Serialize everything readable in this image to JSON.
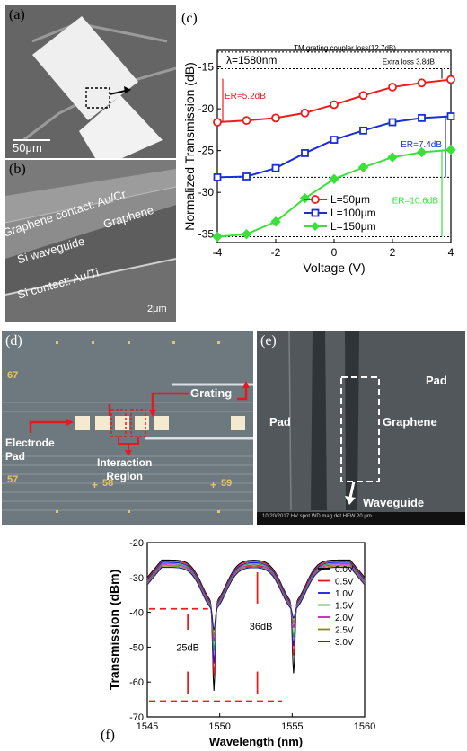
{
  "panels": {
    "a": {
      "label": "(a)",
      "scale": "50μm"
    },
    "b": {
      "label": "(b)",
      "graphene_contact": "Graphene contact: Au/Cr",
      "graphene": "Graphene",
      "si_waveguide": "Si waveguide",
      "si_contact": "Si contact: Au/Ti",
      "scale": "2μm"
    },
    "c": {
      "label": "(c)",
      "tm_loss": "TM grating coupler loss(12.7dB)",
      "extra_loss": "Extra loss 3.8dB",
      "lambda": "λ=1580nm",
      "er1": "ER=5.2dB",
      "er2": "ER=7.4dB",
      "er3": "ER=10.6dB"
    },
    "d": {
      "label": "(d)",
      "grating": "Grating",
      "electrode1": "Electrode",
      "electrode2": "Pad",
      "interaction1": "Interaction",
      "interaction2": "Region",
      "num1": "67",
      "num2": "57",
      "num3": "58",
      "num4": "59"
    },
    "e": {
      "label": "(e)",
      "pad_left": "Pad",
      "pad_right": "Pad",
      "graphene": "Graphene",
      "waveguide": "Waveguide",
      "info": "10/20/2017  HV  spot  WD  mag  det  HFW      20 μm"
    },
    "f": {
      "label": "(f)",
      "db25": "25dB",
      "db36": "36dB"
    }
  },
  "colors": {
    "red": "#ee1c1c",
    "blue": "#1a2fd6",
    "green": "#39e13a"
  },
  "chart_data": [
    {
      "type": "line",
      "xlabel": "Voltage (V)",
      "ylabel": "Normalized Transmission (dB)",
      "xlim": [
        -4,
        4
      ],
      "ylim": [
        -36,
        -13
      ],
      "xticks": [
        "-4",
        "-2",
        "0",
        "2",
        "4"
      ],
      "yticks": [
        "-15",
        "-20",
        "-25",
        "-30",
        "-35"
      ],
      "legend_position": "bottom-center",
      "x": [
        -4,
        -3,
        -2,
        -1,
        0,
        1,
        2,
        3,
        4
      ],
      "series": [
        {
          "name": "L=50μm",
          "color": "#ee1c1c",
          "marker": "circle",
          "values": [
            -21.6,
            -21.4,
            -21.1,
            -20.5,
            -19.5,
            -18.4,
            -17.4,
            -16.9,
            -16.5
          ]
        },
        {
          "name": "L=100μm",
          "color": "#1a2fd6",
          "marker": "square",
          "values": [
            -28.2,
            -28.1,
            -27.1,
            -25.3,
            -23.7,
            -22.6,
            -21.6,
            -21.1,
            -20.9
          ]
        },
        {
          "name": "L=150μm",
          "color": "#39e13a",
          "marker": "diamond",
          "values": [
            -35.3,
            -35.0,
            -33.5,
            -30.7,
            -28.4,
            -27.0,
            -25.8,
            -25.2,
            -24.9
          ]
        }
      ]
    },
    {
      "type": "line",
      "xlabel": "Wavelength (nm)",
      "ylabel": "Transmission (dBm)",
      "xlim": [
        1545,
        1560
      ],
      "ylim": [
        -70,
        -20
      ],
      "xticks": [
        "1545",
        "1550",
        "1555",
        "1560"
      ],
      "yticks": [
        "-20",
        "-30",
        "-40",
        "-50",
        "-60",
        "-70"
      ],
      "legend_position": "right",
      "series": [
        {
          "name": "0.0V",
          "color": "#000000"
        },
        {
          "name": "0.5V",
          "color": "#e8191c"
        },
        {
          "name": "1.0V",
          "color": "#1a1ae6"
        },
        {
          "name": "1.5V",
          "color": "#1faa3c"
        },
        {
          "name": "2.0V",
          "color": "#cc1acc"
        },
        {
          "name": "2.5V",
          "color": "#8a8a1a"
        },
        {
          "name": "3.0V",
          "color": "#1a1a9a"
        }
      ],
      "dips": [
        {
          "center": 1549.6,
          "min_values": [
            -62.5,
            -58,
            -54,
            -50,
            -47,
            -45,
            -43
          ]
        },
        {
          "center": 1555.1,
          "min_values": [
            -57.5,
            -52,
            -49,
            -46,
            -43,
            -41,
            -39.5
          ]
        }
      ]
    }
  ]
}
